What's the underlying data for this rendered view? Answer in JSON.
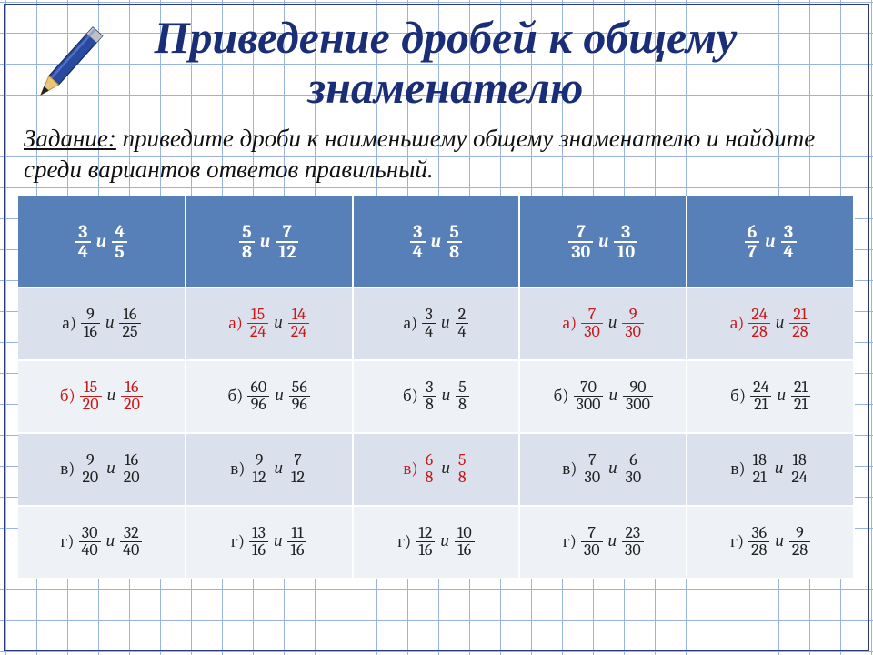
{
  "title": "Приведение дробей к общему знаменателю",
  "task_label": "Задание:",
  "task_text": " приведите дроби к  наименьшему общему знаменателю и найдите среди вариантов ответов правильный.",
  "and": "и",
  "letters": [
    "а)",
    "б)",
    "в)",
    "г)"
  ],
  "colors": {
    "title": "#1a2e78",
    "header_bg": "#5880b8",
    "row_even": "#dae1ed",
    "row_odd": "#eef1f6",
    "highlight": "#c81818",
    "grid": "#4878c8"
  },
  "columns": [
    {
      "header": [
        [
          3,
          4
        ],
        [
          4,
          5
        ]
      ],
      "rows": [
        {
          "f": [
            [
              9,
              16
            ],
            [
              16,
              25
            ]
          ],
          "hl": false
        },
        {
          "f": [
            [
              15,
              20
            ],
            [
              16,
              20
            ]
          ],
          "hl": true
        },
        {
          "f": [
            [
              9,
              20
            ],
            [
              16,
              20
            ]
          ],
          "hl": false
        },
        {
          "f": [
            [
              30,
              40
            ],
            [
              32,
              40
            ]
          ],
          "hl": false
        }
      ]
    },
    {
      "header": [
        [
          5,
          8
        ],
        [
          7,
          12
        ]
      ],
      "rows": [
        {
          "f": [
            [
              15,
              24
            ],
            [
              14,
              24
            ]
          ],
          "hl": true
        },
        {
          "f": [
            [
              60,
              96
            ],
            [
              56,
              96
            ]
          ],
          "hl": false
        },
        {
          "f": [
            [
              9,
              12
            ],
            [
              7,
              12
            ]
          ],
          "hl": false
        },
        {
          "f": [
            [
              13,
              16
            ],
            [
              11,
              16
            ]
          ],
          "hl": false
        }
      ]
    },
    {
      "header": [
        [
          3,
          4
        ],
        [
          5,
          8
        ]
      ],
      "rows": [
        {
          "f": [
            [
              3,
              4
            ],
            [
              2,
              4
            ]
          ],
          "hl": false
        },
        {
          "f": [
            [
              3,
              8
            ],
            [
              5,
              8
            ]
          ],
          "hl": false
        },
        {
          "f": [
            [
              6,
              8
            ],
            [
              5,
              8
            ]
          ],
          "hl": true
        },
        {
          "f": [
            [
              12,
              16
            ],
            [
              10,
              16
            ]
          ],
          "hl": false
        }
      ]
    },
    {
      "header": [
        [
          7,
          30
        ],
        [
          3,
          10
        ]
      ],
      "rows": [
        {
          "f": [
            [
              7,
              30
            ],
            [
              9,
              30
            ]
          ],
          "hl": true
        },
        {
          "f": [
            [
              70,
              300
            ],
            [
              90,
              300
            ]
          ],
          "hl": false
        },
        {
          "f": [
            [
              7,
              30
            ],
            [
              6,
              30
            ]
          ],
          "hl": false
        },
        {
          "f": [
            [
              7,
              30
            ],
            [
              23,
              30
            ]
          ],
          "hl": false
        }
      ]
    },
    {
      "header": [
        [
          6,
          7
        ],
        [
          3,
          4
        ]
      ],
      "rows": [
        {
          "f": [
            [
              24,
              28
            ],
            [
              21,
              28
            ]
          ],
          "hl": true
        },
        {
          "f": [
            [
              24,
              21
            ],
            [
              21,
              21
            ]
          ],
          "hl": false
        },
        {
          "f": [
            [
              18,
              21
            ],
            [
              18,
              24
            ]
          ],
          "hl": false
        },
        {
          "f": [
            [
              36,
              28
            ],
            [
              9,
              28
            ]
          ],
          "hl": false
        }
      ]
    }
  ]
}
